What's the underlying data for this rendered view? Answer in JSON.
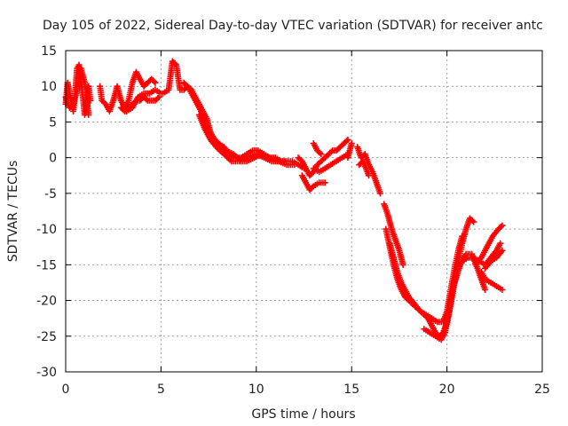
{
  "chart_data": {
    "type": "scatter",
    "title": "Day 105 of 2022, Sidereal Day-to-day VTEC variation (SDTVAR) for receiver antc",
    "xlabel": "GPS time / hours",
    "ylabel": "SDTVAR / TECUs",
    "xlim": [
      0,
      25
    ],
    "ylim": [
      -30,
      15
    ],
    "xticks": [
      0,
      5,
      10,
      15,
      20,
      25
    ],
    "yticks": [
      -30,
      -25,
      -20,
      -15,
      -10,
      -5,
      0,
      5,
      10,
      15
    ],
    "grid": true,
    "marker": "+",
    "color": "#ff0000",
    "series": [
      {
        "name": "SDTVAR",
        "segments": [
          [
            [
              0.0,
              7.5
            ],
            [
              0.1,
              10.5
            ],
            [
              0.2,
              9.0
            ],
            [
              0.3,
              8.0
            ],
            [
              0.4,
              6.5
            ],
            [
              0.5,
              9.0
            ],
            [
              0.6,
              12.5
            ],
            [
              0.7,
              13.0
            ],
            [
              0.8,
              11.0
            ],
            [
              0.9,
              8.5
            ],
            [
              1.0,
              6.0
            ],
            [
              1.1,
              7.0
            ],
            [
              1.2,
              10.0
            ],
            [
              1.3,
              8.0
            ]
          ],
          [
            [
              0.0,
              8.5
            ],
            [
              0.2,
              7.0
            ],
            [
              0.4,
              7.5
            ],
            [
              0.6,
              9.5
            ],
            [
              0.8,
              12.5
            ],
            [
              1.0,
              10.5
            ],
            [
              1.1,
              8.5
            ],
            [
              1.2,
              6.0
            ]
          ],
          [
            [
              1.8,
              10.0
            ],
            [
              1.9,
              8.0
            ],
            [
              2.1,
              7.5
            ],
            [
              2.3,
              6.5
            ],
            [
              2.5,
              8.0
            ],
            [
              2.7,
              10.0
            ],
            [
              2.9,
              8.0
            ],
            [
              3.1,
              7.0
            ],
            [
              3.3,
              8.0
            ],
            [
              3.5,
              10.5
            ],
            [
              3.7,
              12.0
            ],
            [
              3.9,
              11.0
            ],
            [
              4.1,
              10.0
            ],
            [
              4.3,
              10.5
            ],
            [
              4.5,
              11.0
            ],
            [
              4.7,
              10.5
            ]
          ],
          [
            [
              2.9,
              7.0
            ],
            [
              3.1,
              6.5
            ],
            [
              3.3,
              7.0
            ],
            [
              3.5,
              7.5
            ],
            [
              3.7,
              8.0
            ],
            [
              3.9,
              8.0
            ],
            [
              4.1,
              8.5
            ],
            [
              4.3,
              8.0
            ],
            [
              4.5,
              8.0
            ],
            [
              4.7,
              8.0
            ],
            [
              4.9,
              8.5
            ]
          ],
          [
            [
              3.2,
              6.5
            ],
            [
              3.5,
              7.0
            ],
            [
              3.8,
              8.5
            ],
            [
              4.1,
              9.0
            ],
            [
              4.4,
              9.0
            ],
            [
              4.7,
              9.5
            ],
            [
              5.0,
              9.0
            ]
          ],
          [
            [
              5.1,
              9.0
            ],
            [
              5.4,
              9.5
            ],
            [
              5.6,
              13.5
            ],
            [
              5.8,
              13.0
            ],
            [
              6.0,
              9.5
            ],
            [
              6.2,
              9.5
            ],
            [
              6.4,
              10.0
            ],
            [
              6.6,
              9.5
            ],
            [
              6.8,
              8.5
            ],
            [
              7.0,
              7.5
            ],
            [
              7.2,
              6.5
            ],
            [
              7.4,
              5.5
            ],
            [
              7.6,
              3.5
            ],
            [
              7.8,
              2.5
            ],
            [
              8.0,
              2.0
            ],
            [
              8.3,
              1.5
            ],
            [
              8.6,
              0.5
            ],
            [
              8.9,
              0.0
            ],
            [
              9.2,
              0.0
            ],
            [
              9.5,
              0.5
            ],
            [
              9.8,
              1.0
            ],
            [
              10.1,
              1.0
            ],
            [
              10.4,
              0.5
            ],
            [
              10.7,
              0.0
            ],
            [
              11.0,
              0.0
            ],
            [
              11.3,
              -0.5
            ],
            [
              11.6,
              -0.5
            ],
            [
              11.9,
              -0.5
            ],
            [
              12.2,
              -1.0
            ],
            [
              12.5,
              -1.5
            ]
          ],
          [
            [
              6.2,
              10.5
            ],
            [
              6.5,
              9.5
            ],
            [
              6.8,
              8.0
            ],
            [
              7.1,
              6.5
            ],
            [
              7.4,
              4.5
            ],
            [
              7.7,
              3.0
            ],
            [
              8.0,
              2.0
            ],
            [
              8.4,
              1.0
            ],
            [
              8.8,
              0.5
            ],
            [
              9.2,
              -0.5
            ],
            [
              9.6,
              0.0
            ],
            [
              10.0,
              0.5
            ],
            [
              10.4,
              0.0
            ],
            [
              10.8,
              -0.5
            ],
            [
              11.2,
              -0.5
            ],
            [
              11.6,
              -1.0
            ],
            [
              12.0,
              -1.0
            ]
          ],
          [
            [
              7.0,
              6.0
            ],
            [
              7.3,
              4.0
            ],
            [
              7.6,
              2.5
            ],
            [
              7.9,
              1.5
            ],
            [
              8.3,
              0.5
            ],
            [
              8.7,
              -0.5
            ],
            [
              9.1,
              -0.5
            ],
            [
              9.5,
              -0.5
            ],
            [
              9.9,
              0.0
            ],
            [
              10.3,
              0.5
            ],
            [
              10.7,
              0.0
            ],
            [
              11.1,
              -0.5
            ],
            [
              11.5,
              -0.5
            ]
          ],
          [
            [
              12.2,
              0.0
            ],
            [
              12.4,
              -0.5
            ],
            [
              12.6,
              -1.5
            ],
            [
              12.8,
              -2.5
            ],
            [
              13.0,
              -2.0
            ],
            [
              13.2,
              -1.0
            ],
            [
              13.4,
              -0.5
            ],
            [
              13.6,
              0.0
            ],
            [
              13.8,
              0.5
            ],
            [
              14.0,
              1.0
            ],
            [
              14.2,
              1.0
            ],
            [
              14.4,
              1.5
            ],
            [
              14.6,
              2.0
            ],
            [
              14.8,
              2.5
            ]
          ],
          [
            [
              12.4,
              -2.5
            ],
            [
              12.6,
              -3.5
            ],
            [
              12.8,
              -4.5
            ],
            [
              13.0,
              -4.0
            ],
            [
              13.3,
              -3.5
            ],
            [
              13.6,
              -3.5
            ]
          ],
          [
            [
              13.0,
              -1.5
            ],
            [
              13.3,
              -2.0
            ],
            [
              13.6,
              -1.5
            ],
            [
              13.9,
              -1.0
            ],
            [
              14.2,
              -0.5
            ],
            [
              14.5,
              0.0
            ],
            [
              14.8,
              0.5
            ]
          ],
          [
            [
              13.0,
              2.0
            ],
            [
              13.2,
              1.0
            ],
            [
              13.4,
              0.5
            ]
          ],
          [
            [
              14.8,
              0.0
            ],
            [
              15.0,
              2.0
            ]
          ],
          [
            [
              15.3,
              1.5
            ],
            [
              15.5,
              0.0
            ],
            [
              15.7,
              0.5
            ],
            [
              15.9,
              -1.0
            ],
            [
              16.1,
              -2.0
            ],
            [
              16.3,
              -3.5
            ],
            [
              16.5,
              -5.0
            ]
          ],
          [
            [
              15.4,
              -1.0
            ],
            [
              15.6,
              -0.5
            ],
            [
              15.9,
              -2.5
            ]
          ],
          [
            [
              16.7,
              -6.5
            ],
            [
              16.9,
              -8.0
            ],
            [
              17.1,
              -10.0
            ],
            [
              17.3,
              -11.5
            ],
            [
              17.5,
              -13.0
            ],
            [
              17.7,
              -15.0
            ]
          ],
          [
            [
              16.8,
              -10.0
            ],
            [
              17.0,
              -12.5
            ],
            [
              17.2,
              -15.0
            ],
            [
              17.4,
              -17.0
            ],
            [
              17.6,
              -18.5
            ],
            [
              17.8,
              -19.5
            ],
            [
              18.0,
              -20.0
            ],
            [
              18.2,
              -20.5
            ],
            [
              18.4,
              -21.0
            ],
            [
              18.6,
              -21.5
            ],
            [
              18.8,
              -22.0
            ],
            [
              19.0,
              -22.5
            ],
            [
              19.2,
              -23.5
            ],
            [
              19.4,
              -24.5
            ],
            [
              19.6,
              -25.0
            ],
            [
              19.8,
              -24.5
            ],
            [
              20.0,
              -23.0
            ],
            [
              20.2,
              -20.0
            ],
            [
              20.4,
              -17.0
            ],
            [
              20.6,
              -14.5
            ],
            [
              20.8,
              -12.0
            ],
            [
              21.0,
              -10.0
            ],
            [
              21.2,
              -8.5
            ],
            [
              21.4,
              -9.0
            ]
          ],
          [
            [
              17.0,
              -12.0
            ],
            [
              17.2,
              -14.0
            ],
            [
              17.4,
              -16.0
            ],
            [
              17.6,
              -17.5
            ],
            [
              17.8,
              -18.5
            ],
            [
              18.0,
              -19.5
            ],
            [
              18.3,
              -20.5
            ],
            [
              18.6,
              -21.5
            ],
            [
              18.9,
              -22.0
            ],
            [
              19.2,
              -22.5
            ],
            [
              19.5,
              -23.0
            ],
            [
              19.8,
              -23.0
            ],
            [
              20.0,
              -21.5
            ],
            [
              20.2,
              -18.5
            ],
            [
              20.4,
              -15.5
            ],
            [
              20.6,
              -13.0
            ],
            [
              20.8,
              -11.0
            ]
          ],
          [
            [
              18.8,
              -24.0
            ],
            [
              19.1,
              -24.5
            ],
            [
              19.4,
              -25.0
            ],
            [
              19.7,
              -25.5
            ],
            [
              19.9,
              -24.5
            ],
            [
              20.1,
              -22.0
            ],
            [
              20.3,
              -19.0
            ],
            [
              20.5,
              -16.0
            ],
            [
              20.8,
              -14.5
            ],
            [
              21.1,
              -14.0
            ],
            [
              21.4,
              -14.0
            ],
            [
              21.7,
              -14.5
            ],
            [
              22.0,
              -15.0
            ],
            [
              22.3,
              -14.0
            ],
            [
              22.6,
              -13.0
            ],
            [
              22.8,
              -12.0
            ]
          ],
          [
            [
              20.4,
              -17.5
            ],
            [
              20.7,
              -15.0
            ],
            [
              21.0,
              -13.5
            ],
            [
              21.3,
              -13.5
            ],
            [
              21.6,
              -15.5
            ],
            [
              21.8,
              -17.0
            ],
            [
              22.0,
              -18.5
            ]
          ],
          [
            [
              21.5,
              -15.0
            ],
            [
              21.8,
              -14.0
            ],
            [
              22.1,
              -12.5
            ],
            [
              22.4,
              -11.0
            ],
            [
              22.7,
              -10.0
            ],
            [
              22.9,
              -9.5
            ]
          ],
          [
            [
              21.8,
              -16.0
            ],
            [
              22.0,
              -17.0
            ],
            [
              22.3,
              -17.5
            ],
            [
              22.6,
              -18.0
            ],
            [
              22.9,
              -18.5
            ]
          ],
          [
            [
              22.0,
              -15.5
            ],
            [
              22.3,
              -14.5
            ],
            [
              22.6,
              -14.0
            ],
            [
              22.9,
              -13.0
            ]
          ]
        ]
      }
    ]
  }
}
